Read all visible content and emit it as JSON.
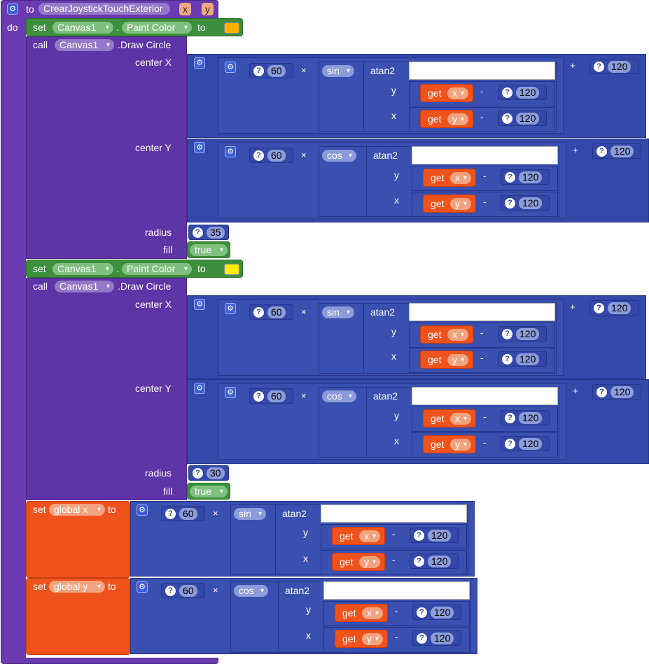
{
  "procedure": {
    "to_label": "to",
    "name": "CrearJoystickTouchExterior",
    "params": [
      "x",
      "y"
    ],
    "do_label": "do"
  },
  "labels": {
    "set": "set",
    "to": "to",
    "call": "call",
    "dot": ".",
    "draw_circle": ".Draw Circle",
    "center_x": "center X",
    "center_y": "center Y",
    "radius": "radius",
    "fill": "fill",
    "times": "×",
    "minus": "-",
    "plus": "+",
    "atan2": "atan2",
    "y": "y",
    "x": "x",
    "get": "get",
    "q": "?"
  },
  "blocks": {
    "set1": {
      "component": "Canvas1",
      "property": "Paint Color",
      "color": "#ffb300"
    },
    "call1": {
      "component": "Canvas1",
      "radius": "35",
      "fill": "true"
    },
    "set2": {
      "component": "Canvas1",
      "property": "Paint Color",
      "color": "#ffee00"
    },
    "call2": {
      "component": "Canvas1",
      "radius": "30",
      "fill": "true"
    },
    "setgx": {
      "var": "global x"
    },
    "setgy": {
      "var": "global y"
    }
  },
  "math": {
    "scale": "60",
    "offset": "120",
    "sin": "sin",
    "cos": "cos",
    "get_x": "x",
    "get_y": "y"
  }
}
